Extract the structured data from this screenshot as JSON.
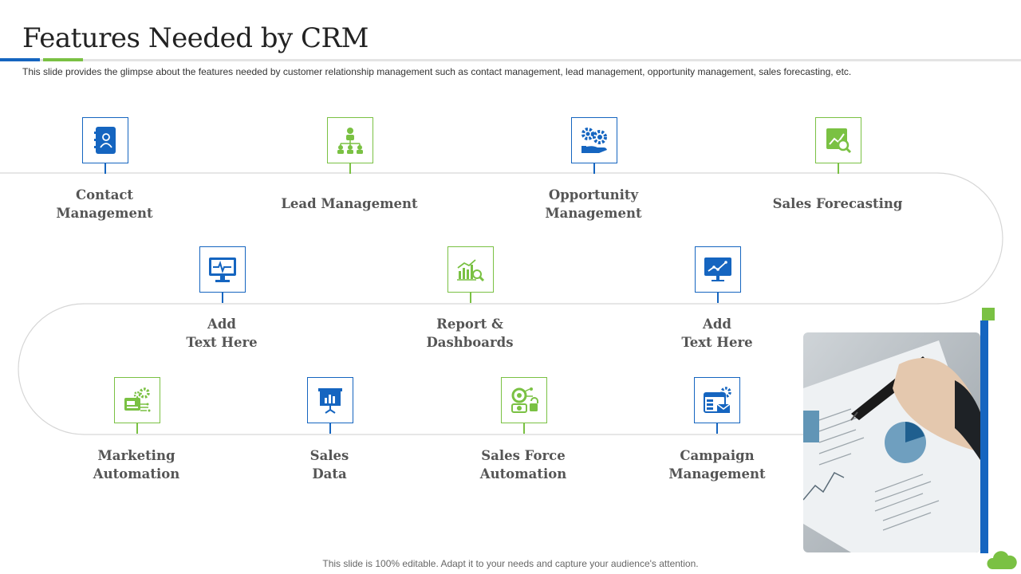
{
  "title": "Features Needed by CRM",
  "subtitle": "This slide provides  the glimpse about the features needed  by customer relationship management  such as contact management,  lead management,  opportunity management,  sales forecasting, etc.",
  "footer": "This slide is 100% editable. Adapt it to your needs and capture your audience's attention.",
  "colors": {
    "blue": "#1565c0",
    "green": "#7ac143"
  },
  "row1": [
    {
      "line1": "Contact",
      "line2": "Management",
      "icon": "contact-book-icon"
    },
    {
      "line1": "Lead Management",
      "line2": "",
      "icon": "org-hierarchy-icon"
    },
    {
      "line1": "Opportunity",
      "line2": "Management",
      "icon": "gears-hand-icon"
    },
    {
      "line1": "Sales Forecasting",
      "line2": "",
      "icon": "chart-magnifier-icon"
    }
  ],
  "row2": [
    {
      "line1": "Add",
      "line2": "Text Here",
      "icon": "monitor-pulse-icon"
    },
    {
      "line1": "Report &",
      "line2": "Dashboards",
      "icon": "report-magnifier-icon"
    },
    {
      "line1": "Add",
      "line2": "Text Here",
      "icon": "monitor-chart-icon"
    }
  ],
  "row3": [
    {
      "line1": "Marketing",
      "line2": "Automation",
      "icon": "marketing-gear-icon"
    },
    {
      "line1": "Sales",
      "line2": "Data",
      "icon": "presentation-board-icon"
    },
    {
      "line1": "Sales Force",
      "line2": "Automation",
      "icon": "automation-gears-icon"
    },
    {
      "line1": "Campaign",
      "line2": "Management",
      "icon": "campaign-browser-icon"
    }
  ]
}
